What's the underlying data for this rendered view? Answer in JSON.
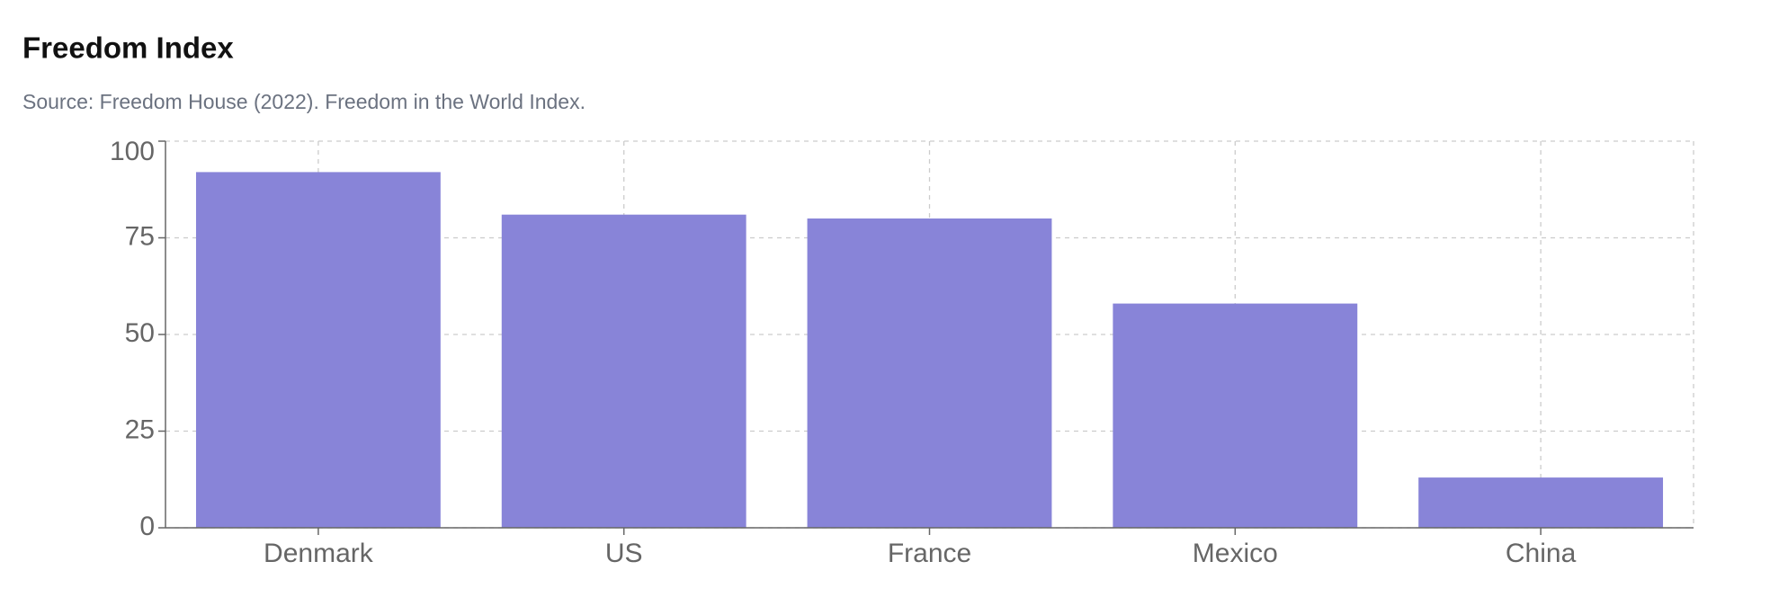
{
  "chart_data": {
    "type": "bar",
    "title": "Freedom Index",
    "subtitle": "Source: Freedom House (2022). Freedom in the World Index.",
    "categories": [
      "Denmark",
      "US",
      "France",
      "Mexico",
      "China"
    ],
    "values": [
      92,
      81,
      80,
      58,
      13
    ],
    "color": "#8884d8",
    "ylim": [
      0,
      100
    ],
    "yticks": [
      0,
      25,
      50,
      75,
      100
    ],
    "grid": true
  }
}
